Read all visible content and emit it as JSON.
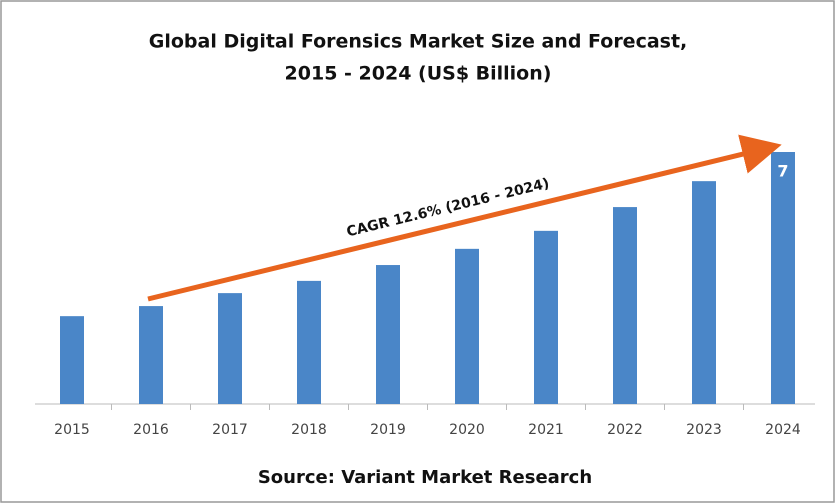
{
  "chart_data": {
    "type": "bar",
    "title": [
      "Global Digital Forensics Market Size and Forecast,",
      "2015 - 2024 (US$ Billion)"
    ],
    "categories": [
      "2015",
      "2016",
      "2017",
      "2018",
      "2019",
      "2020",
      "2021",
      "2022",
      "2023",
      "2024"
    ],
    "values": [
      2.44,
      2.72,
      3.08,
      3.42,
      3.86,
      4.31,
      4.81,
      5.47,
      6.19,
      7
    ],
    "value_labels": [
      null,
      null,
      null,
      null,
      null,
      null,
      null,
      null,
      null,
      "7"
    ],
    "color": "#4a86c8",
    "annotation": "CAGR 12.6% (2016 - 2024)",
    "source": "Source: Variant Market Research"
  }
}
